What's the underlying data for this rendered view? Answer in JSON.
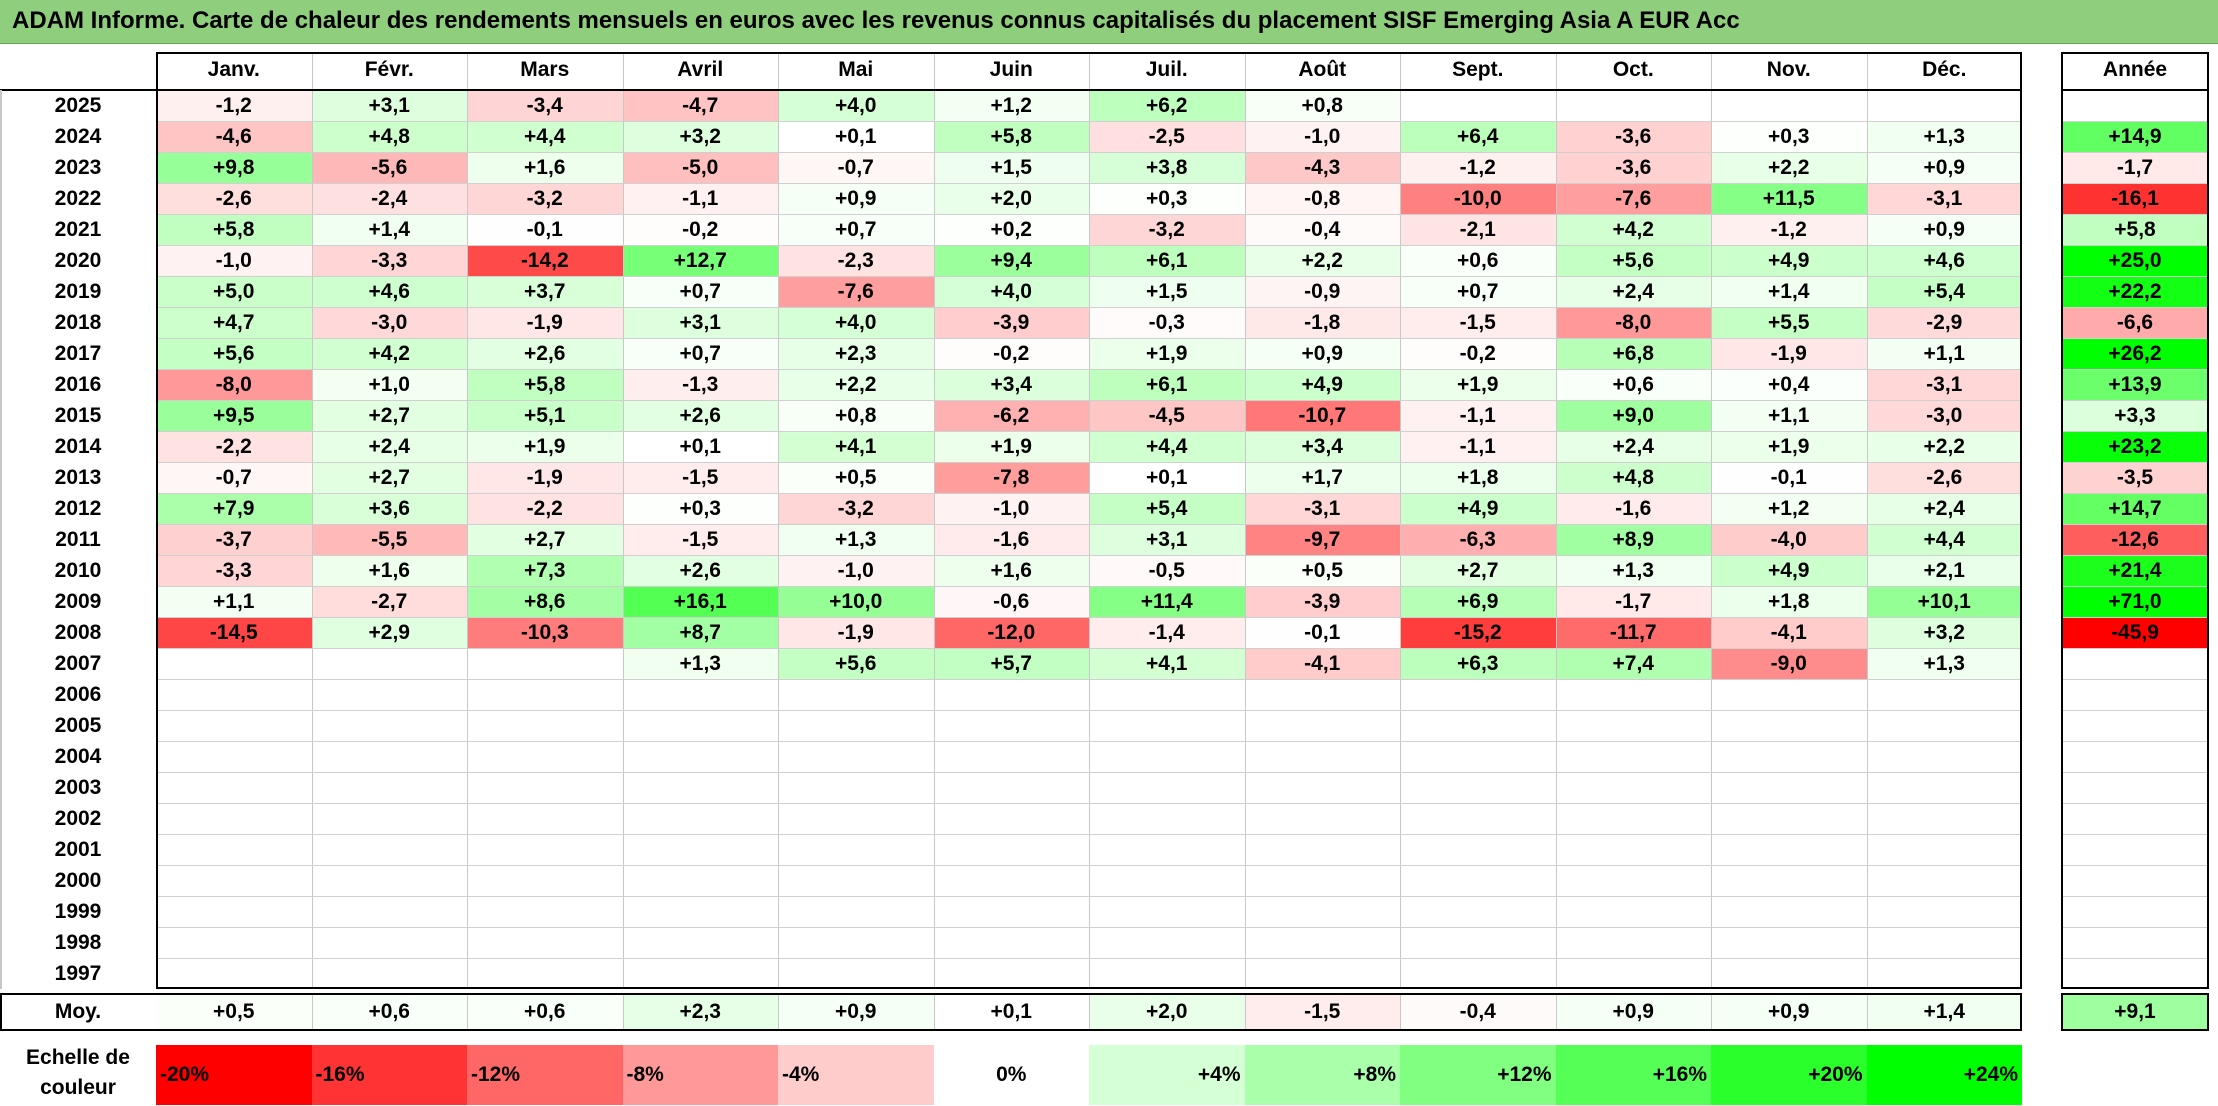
{
  "title": "ADAM Informe. Carte de chaleur des rendements mensuels en euros avec les revenus connus capitalisés du placement SISF Emerging Asia A EUR Acc",
  "chart_data": {
    "type": "heatmap",
    "months": [
      "Janv.",
      "Févr.",
      "Mars",
      "Avril",
      "Mai",
      "Juin",
      "Juil.",
      "Août",
      "Sept.",
      "Oct.",
      "Nov.",
      "Déc."
    ],
    "year_header": "Année",
    "rows": [
      {
        "year": "2025",
        "values": [
          "-1,2",
          "+3,1",
          "-3,4",
          "-4,7",
          "+4,0",
          "+1,2",
          "+6,2",
          "+0,8",
          "",
          "",
          "",
          ""
        ],
        "annual": ""
      },
      {
        "year": "2024",
        "values": [
          "-4,6",
          "+4,8",
          "+4,4",
          "+3,2",
          "+0,1",
          "+5,8",
          "-2,5",
          "-1,0",
          "+6,4",
          "-3,6",
          "+0,3",
          "+1,3"
        ],
        "annual": "+14,9"
      },
      {
        "year": "2023",
        "values": [
          "+9,8",
          "-5,6",
          "+1,6",
          "-5,0",
          "-0,7",
          "+1,5",
          "+3,8",
          "-4,3",
          "-1,2",
          "-3,6",
          "+2,2",
          "+0,9"
        ],
        "annual": "-1,7"
      },
      {
        "year": "2022",
        "values": [
          "-2,6",
          "-2,4",
          "-3,2",
          "-1,1",
          "+0,9",
          "+2,0",
          "+0,3",
          "-0,8",
          "-10,0",
          "-7,6",
          "+11,5",
          "-3,1"
        ],
        "annual": "-16,1"
      },
      {
        "year": "2021",
        "values": [
          "+5,8",
          "+1,4",
          "-0,1",
          "-0,2",
          "+0,7",
          "+0,2",
          "-3,2",
          "-0,4",
          "-2,1",
          "+4,2",
          "-1,2",
          "+0,9"
        ],
        "annual": "+5,8"
      },
      {
        "year": "2020",
        "values": [
          "-1,0",
          "-3,3",
          "-14,2",
          "+12,7",
          "-2,3",
          "+9,4",
          "+6,1",
          "+2,2",
          "+0,6",
          "+5,6",
          "+4,9",
          "+4,6"
        ],
        "annual": "+25,0"
      },
      {
        "year": "2019",
        "values": [
          "+5,0",
          "+4,6",
          "+3,7",
          "+0,7",
          "-7,6",
          "+4,0",
          "+1,5",
          "-0,9",
          "+0,7",
          "+2,4",
          "+1,4",
          "+5,4"
        ],
        "annual": "+22,2"
      },
      {
        "year": "2018",
        "values": [
          "+4,7",
          "-3,0",
          "-1,9",
          "+3,1",
          "+4,0",
          "-3,9",
          "-0,3",
          "-1,8",
          "-1,5",
          "-8,0",
          "+5,5",
          "-2,9"
        ],
        "annual": "-6,6"
      },
      {
        "year": "2017",
        "values": [
          "+5,6",
          "+4,2",
          "+2,6",
          "+0,7",
          "+2,3",
          "-0,2",
          "+1,9",
          "+0,9",
          "-0,2",
          "+6,8",
          "-1,9",
          "+1,1"
        ],
        "annual": "+26,2"
      },
      {
        "year": "2016",
        "values": [
          "-8,0",
          "+1,0",
          "+5,8",
          "-1,3",
          "+2,2",
          "+3,4",
          "+6,1",
          "+4,9",
          "+1,9",
          "+0,6",
          "+0,4",
          "-3,1"
        ],
        "annual": "+13,9"
      },
      {
        "year": "2015",
        "values": [
          "+9,5",
          "+2,7",
          "+5,1",
          "+2,6",
          "+0,8",
          "-6,2",
          "-4,5",
          "-10,7",
          "-1,1",
          "+9,0",
          "+1,1",
          "-3,0"
        ],
        "annual": "+3,3"
      },
      {
        "year": "2014",
        "values": [
          "-2,2",
          "+2,4",
          "+1,9",
          "+0,1",
          "+4,1",
          "+1,9",
          "+4,4",
          "+3,4",
          "-1,1",
          "+2,4",
          "+1,9",
          "+2,2"
        ],
        "annual": "+23,2"
      },
      {
        "year": "2013",
        "values": [
          "-0,7",
          "+2,7",
          "-1,9",
          "-1,5",
          "+0,5",
          "-7,8",
          "+0,1",
          "+1,7",
          "+1,8",
          "+4,8",
          "-0,1",
          "-2,6"
        ],
        "annual": "-3,5"
      },
      {
        "year": "2012",
        "values": [
          "+7,9",
          "+3,6",
          "-2,2",
          "+0,3",
          "-3,2",
          "-1,0",
          "+5,4",
          "-3,1",
          "+4,9",
          "-1,6",
          "+1,2",
          "+2,4"
        ],
        "annual": "+14,7"
      },
      {
        "year": "2011",
        "values": [
          "-3,7",
          "-5,5",
          "+2,7",
          "-1,5",
          "+1,3",
          "-1,6",
          "+3,1",
          "-9,7",
          "-6,3",
          "+8,9",
          "-4,0",
          "+4,4"
        ],
        "annual": "-12,6"
      },
      {
        "year": "2010",
        "values": [
          "-3,3",
          "+1,6",
          "+7,3",
          "+2,6",
          "-1,0",
          "+1,6",
          "-0,5",
          "+0,5",
          "+2,7",
          "+1,3",
          "+4,9",
          "+2,1"
        ],
        "annual": "+21,4"
      },
      {
        "year": "2009",
        "values": [
          "+1,1",
          "-2,7",
          "+8,6",
          "+16,1",
          "+10,0",
          "-0,6",
          "+11,4",
          "-3,9",
          "+6,9",
          "-1,7",
          "+1,8",
          "+10,1"
        ],
        "annual": "+71,0"
      },
      {
        "year": "2008",
        "values": [
          "-14,5",
          "+2,9",
          "-10,3",
          "+8,7",
          "-1,9",
          "-12,0",
          "-1,4",
          "-0,1",
          "-15,2",
          "-11,7",
          "-4,1",
          "+3,2"
        ],
        "annual": "-45,9"
      },
      {
        "year": "2007",
        "values": [
          "",
          "",
          "",
          "+1,3",
          "+5,6",
          "+5,7",
          "+4,1",
          "-4,1",
          "+6,3",
          "+7,4",
          "-9,0",
          "+1,3"
        ],
        "annual": ""
      },
      {
        "year": "2006",
        "values": [
          "",
          "",
          "",
          "",
          "",
          "",
          "",
          "",
          "",
          "",
          "",
          ""
        ],
        "annual": ""
      },
      {
        "year": "2005",
        "values": [
          "",
          "",
          "",
          "",
          "",
          "",
          "",
          "",
          "",
          "",
          "",
          ""
        ],
        "annual": ""
      },
      {
        "year": "2004",
        "values": [
          "",
          "",
          "",
          "",
          "",
          "",
          "",
          "",
          "",
          "",
          "",
          ""
        ],
        "annual": ""
      },
      {
        "year": "2003",
        "values": [
          "",
          "",
          "",
          "",
          "",
          "",
          "",
          "",
          "",
          "",
          "",
          ""
        ],
        "annual": ""
      },
      {
        "year": "2002",
        "values": [
          "",
          "",
          "",
          "",
          "",
          "",
          "",
          "",
          "",
          "",
          "",
          ""
        ],
        "annual": ""
      },
      {
        "year": "2001",
        "values": [
          "",
          "",
          "",
          "",
          "",
          "",
          "",
          "",
          "",
          "",
          "",
          ""
        ],
        "annual": ""
      },
      {
        "year": "2000",
        "values": [
          "",
          "",
          "",
          "",
          "",
          "",
          "",
          "",
          "",
          "",
          "",
          ""
        ],
        "annual": ""
      },
      {
        "year": "1999",
        "values": [
          "",
          "",
          "",
          "",
          "",
          "",
          "",
          "",
          "",
          "",
          "",
          ""
        ],
        "annual": ""
      },
      {
        "year": "1998",
        "values": [
          "",
          "",
          "",
          "",
          "",
          "",
          "",
          "",
          "",
          "",
          "",
          ""
        ],
        "annual": ""
      },
      {
        "year": "1997",
        "values": [
          "",
          "",
          "",
          "",
          "",
          "",
          "",
          "",
          "",
          "",
          "",
          ""
        ],
        "annual": ""
      }
    ],
    "average": {
      "label": "Moy.",
      "values": [
        "+0,5",
        "+0,6",
        "+0,6",
        "+2,3",
        "+0,9",
        "+0,1",
        "+2,0",
        "-1,5",
        "-0,4",
        "+0,9",
        "+0,9",
        "+1,4"
      ],
      "annual": "+9,1"
    },
    "legend": {
      "label": "Echelle de couleur",
      "stops": [
        {
          "label": "-20%",
          "value": -20
        },
        {
          "label": "-16%",
          "value": -16
        },
        {
          "label": "-12%",
          "value": -12
        },
        {
          "label": "-8%",
          "value": -8
        },
        {
          "label": "-4%",
          "value": -4
        },
        {
          "label": "0%",
          "value": 0
        },
        {
          "label": "+4%",
          "value": 4
        },
        {
          "label": "+8%",
          "value": 8
        },
        {
          "label": "+12%",
          "value": 12
        },
        {
          "label": "+16%",
          "value": 16
        },
        {
          "label": "+20%",
          "value": 20
        },
        {
          "label": "+24%",
          "value": 24
        }
      ]
    },
    "colors": {
      "negative": "#ff0000",
      "neutral": "#ffffff",
      "positive": "#00ff00"
    }
  }
}
